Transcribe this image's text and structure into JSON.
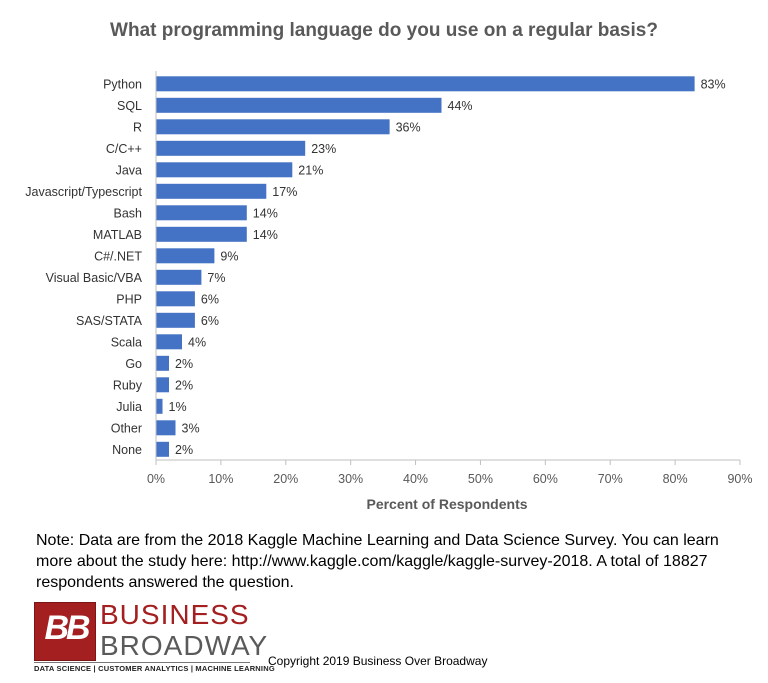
{
  "chart_data": {
    "type": "bar",
    "orientation": "horizontal",
    "title": "What programming language do you use on a regular basis?",
    "xlabel": "Percent of Respondents",
    "ylabel": "",
    "xlim": [
      0,
      90
    ],
    "x_ticks": [
      "0%",
      "10%",
      "20%",
      "30%",
      "40%",
      "50%",
      "60%",
      "70%",
      "80%",
      "90%"
    ],
    "categories": [
      "Python",
      "SQL",
      "R",
      "C/C++",
      "Java",
      "Javascript/Typescript",
      "Bash",
      "MATLAB",
      "C#/.NET",
      "Visual Basic/VBA",
      "PHP",
      "SAS/STATA",
      "Scala",
      "Go",
      "Ruby",
      "Julia",
      "Other",
      "None"
    ],
    "values": [
      83,
      44,
      36,
      23,
      21,
      17,
      14,
      14,
      9,
      7,
      6,
      6,
      4,
      2,
      2,
      1,
      3,
      2
    ],
    "data_labels": [
      "83%",
      "44%",
      "36%",
      "23%",
      "21%",
      "17%",
      "14%",
      "14%",
      "9%",
      "7%",
      "6%",
      "6%",
      "4%",
      "2%",
      "2%",
      "1%",
      "3%",
      "2%"
    ],
    "bar_color": "#4472c4",
    "grid": false
  },
  "note": "Note: Data are from the 2018 Kaggle Machine Learning and Data Science Survey. You can learn more about the study here: http://www.kaggle.com/kaggle/kaggle-survey-2018.  A total of 18827 respondents answered the question.",
  "logo": {
    "mark": "BB",
    "line1": "BUSINESS",
    "line2": "BROADWAY",
    "tagline": "DATA SCIENCE  |  CUSTOMER ANALYTICS  |  MACHINE LEARNING"
  },
  "copyright": "Copyright 2019 Business Over Broadway"
}
